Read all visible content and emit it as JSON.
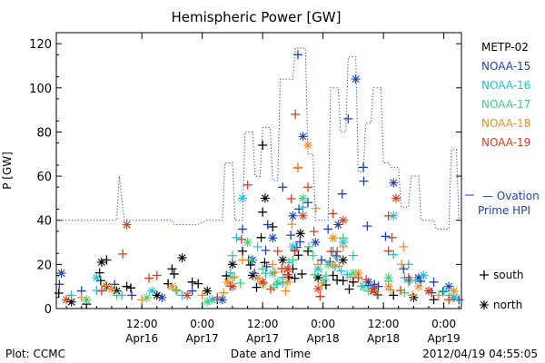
{
  "chart_data": {
    "type": "scatter",
    "title": "Hemispheric Power [GW]",
    "xlabel": "Date and Time",
    "ylabel": "P [GW]",
    "ylim": [
      0,
      125
    ],
    "yticks": [
      "0",
      "20",
      "40",
      "60",
      "80",
      "100",
      "120"
    ],
    "xlim": [
      "2012-04-15T19:00",
      "2012-04-19T03:30"
    ],
    "xticks": [
      {
        "t": "2012-04-16T12:00",
        "time": "12:00",
        "day": "Apr16"
      },
      {
        "t": "2012-04-17T00:00",
        "time": "0:00",
        "day": "Apr17"
      },
      {
        "t": "2012-04-17T12:00",
        "time": "12:00",
        "day": "Apr17"
      },
      {
        "t": "2012-04-18T00:00",
        "time": "0:00",
        "day": "Apr18"
      },
      {
        "t": "2012-04-18T12:00",
        "time": "12:00",
        "day": "Apr18"
      },
      {
        "t": "2012-04-19T00:00",
        "time": "0:00",
        "day": "Apr19"
      }
    ],
    "grid": false,
    "legend_position": "right",
    "footer_left": "Plot: CCMC",
    "footer_right": "2012/04/19 04:55:05",
    "series": [
      {
        "name": "METP-02",
        "color": "#000000",
        "marker": "mixed",
        "points": [
          [
            "2012-04-15T19:30",
            7
          ],
          [
            "2012-04-15T22:00",
            3
          ],
          [
            "2012-04-16T01:00",
            2
          ],
          [
            "2012-04-16T04:00",
            21
          ],
          [
            "2012-04-16T05:00",
            22
          ],
          [
            "2012-04-16T07:00",
            8
          ],
          [
            "2012-04-16T09:00",
            10
          ],
          [
            "2012-04-16T15:00",
            6
          ],
          [
            "2012-04-16T18:00",
            18
          ],
          [
            "2012-04-16T20:00",
            23
          ],
          [
            "2012-04-16T22:00",
            12
          ],
          [
            "2012-04-17T01:00",
            8
          ],
          [
            "2012-04-17T03:00",
            4
          ],
          [
            "2012-04-17T06:00",
            20
          ],
          [
            "2012-04-17T08:00",
            26
          ],
          [
            "2012-04-17T10:00",
            15
          ],
          [
            "2012-04-17T12:00",
            74
          ],
          [
            "2012-04-17T12:30",
            50
          ],
          [
            "2012-04-17T14:00",
            37
          ],
          [
            "2012-04-17T16:00",
            22
          ],
          [
            "2012-04-17T18:00",
            18
          ],
          [
            "2012-04-17T19:30",
            34
          ],
          [
            "2012-04-17T21:00",
            26
          ],
          [
            "2012-04-17T23:00",
            14
          ],
          [
            "2012-04-18T02:00",
            15
          ],
          [
            "2012-04-18T04:00",
            22
          ],
          [
            "2012-04-18T06:00",
            12
          ],
          [
            "2012-04-18T10:00",
            8
          ],
          [
            "2012-04-18T14:00",
            6
          ],
          [
            "2012-04-18T18:00",
            5
          ],
          [
            "2012-04-18T22:00",
            4
          ],
          [
            "2012-04-19T02:00",
            5
          ]
        ]
      },
      {
        "name": "NOAA-15",
        "color": "#1c3fc8",
        "marker": "mixed",
        "points": [
          [
            "2012-04-15T20:00",
            16
          ],
          [
            "2012-04-16T00:00",
            8
          ],
          [
            "2012-04-16T05:00",
            10
          ],
          [
            "2012-04-16T10:00",
            6
          ],
          [
            "2012-04-16T16:00",
            5
          ],
          [
            "2012-04-16T22:00",
            8
          ],
          [
            "2012-04-17T04:00",
            4
          ],
          [
            "2012-04-17T08:00",
            36
          ],
          [
            "2012-04-17T10:00",
            22
          ],
          [
            "2012-04-17T13:00",
            38
          ],
          [
            "2012-04-17T14:00",
            32
          ],
          [
            "2012-04-17T16:00",
            55
          ],
          [
            "2012-04-17T18:00",
            42
          ],
          [
            "2012-04-17T19:00",
            115
          ],
          [
            "2012-04-17T20:00",
            78
          ],
          [
            "2012-04-17T21:00",
            48
          ],
          [
            "2012-04-17T22:30",
            30
          ],
          [
            "2012-04-18T01:00",
            36
          ],
          [
            "2012-04-18T03:00",
            38
          ],
          [
            "2012-04-18T05:00",
            86
          ],
          [
            "2012-04-18T06:30",
            104
          ],
          [
            "2012-04-18T08:00",
            64
          ],
          [
            "2012-04-18T09:00",
            12
          ],
          [
            "2012-04-18T11:00",
            10
          ],
          [
            "2012-04-18T14:00",
            57
          ],
          [
            "2012-04-18T16:00",
            18
          ],
          [
            "2012-04-18T19:00",
            14
          ],
          [
            "2012-04-18T22:00",
            12
          ],
          [
            "2012-04-19T01:00",
            10
          ],
          [
            "2012-04-19T03:00",
            4
          ]
        ]
      },
      {
        "name": "NOAA-16",
        "color": "#17c8d6",
        "marker": "mixed",
        "points": [
          [
            "2012-04-15T22:00",
            6
          ],
          [
            "2012-04-16T03:00",
            14
          ],
          [
            "2012-04-16T08:00",
            6
          ],
          [
            "2012-04-16T14:00",
            8
          ],
          [
            "2012-04-16T20:00",
            6
          ],
          [
            "2012-04-17T02:00",
            4
          ],
          [
            "2012-04-17T06:00",
            24
          ],
          [
            "2012-04-17T08:00",
            50
          ],
          [
            "2012-04-17T11:00",
            28
          ],
          [
            "2012-04-17T14:00",
            16
          ],
          [
            "2012-04-17T16:00",
            14
          ],
          [
            "2012-04-17T18:00",
            28
          ],
          [
            "2012-04-17T20:00",
            46
          ],
          [
            "2012-04-17T23:00",
            18
          ],
          [
            "2012-04-18T02:00",
            26
          ],
          [
            "2012-04-18T04:00",
            30
          ],
          [
            "2012-04-18T06:00",
            24
          ],
          [
            "2012-04-18T08:00",
            10
          ],
          [
            "2012-04-18T11:00",
            6
          ],
          [
            "2012-04-18T14:00",
            42
          ],
          [
            "2012-04-18T17:00",
            20
          ],
          [
            "2012-04-18T20:00",
            15
          ],
          [
            "2012-04-19T00:00",
            8
          ],
          [
            "2012-04-19T02:00",
            5
          ]
        ]
      },
      {
        "name": "NOAA-17",
        "color": "#3ad47a",
        "marker": "mixed",
        "points": [
          [
            "2012-04-16T01:00",
            4
          ],
          [
            "2012-04-16T07:00",
            6
          ],
          [
            "2012-04-16T13:00",
            5
          ],
          [
            "2012-04-16T19:00",
            8
          ],
          [
            "2012-04-17T01:00",
            3
          ],
          [
            "2012-04-17T06:00",
            14
          ],
          [
            "2012-04-17T09:00",
            30
          ],
          [
            "2012-04-17T12:00",
            18
          ],
          [
            "2012-04-17T15:00",
            12
          ],
          [
            "2012-04-17T18:00",
            22
          ],
          [
            "2012-04-17T20:00",
            50
          ],
          [
            "2012-04-17T22:00",
            24
          ],
          [
            "2012-04-18T01:00",
            20
          ],
          [
            "2012-04-18T04:00",
            32
          ],
          [
            "2012-04-18T06:00",
            16
          ],
          [
            "2012-04-18T09:00",
            8
          ],
          [
            "2012-04-18T13:00",
            14
          ],
          [
            "2012-04-18T17:00",
            12
          ],
          [
            "2012-04-18T21:00",
            8
          ],
          [
            "2012-04-19T01:00",
            6
          ]
        ]
      },
      {
        "name": "NOAA-18",
        "color": "#f28c1e",
        "marker": "mixed",
        "points": [
          [
            "2012-04-16T00:00",
            5
          ],
          [
            "2012-04-16T06:00",
            9
          ],
          [
            "2012-04-16T12:00",
            4
          ],
          [
            "2012-04-16T18:00",
            10
          ],
          [
            "2012-04-17T00:00",
            6
          ],
          [
            "2012-04-17T05:00",
            12
          ],
          [
            "2012-04-17T08:00",
            22
          ],
          [
            "2012-04-17T11:00",
            14
          ],
          [
            "2012-04-17T14:00",
            20
          ],
          [
            "2012-04-17T17:00",
            12
          ],
          [
            "2012-04-17T19:00",
            64
          ],
          [
            "2012-04-17T21:00",
            74
          ],
          [
            "2012-04-17T23:00",
            20
          ],
          [
            "2012-04-18T02:00",
            32
          ],
          [
            "2012-04-18T04:00",
            28
          ],
          [
            "2012-04-18T07:00",
            16
          ],
          [
            "2012-04-18T10:00",
            8
          ],
          [
            "2012-04-18T13:00",
            10
          ],
          [
            "2012-04-18T16:00",
            28
          ],
          [
            "2012-04-18T19:00",
            10
          ],
          [
            "2012-04-18T23:00",
            6
          ],
          [
            "2012-04-19T02:00",
            8
          ]
        ]
      },
      {
        "name": "NOAA-19",
        "color": "#e03a1e",
        "marker": "mixed",
        "points": [
          [
            "2012-04-15T21:00",
            4
          ],
          [
            "2012-04-16T04:00",
            8
          ],
          [
            "2012-04-16T09:00",
            38
          ],
          [
            "2012-04-16T15:00",
            15
          ],
          [
            "2012-04-16T21:00",
            6
          ],
          [
            "2012-04-17T03:00",
            5
          ],
          [
            "2012-04-17T06:00",
            10
          ],
          [
            "2012-04-17T09:00",
            56
          ],
          [
            "2012-04-17T12:00",
            12
          ],
          [
            "2012-04-17T15:00",
            26
          ],
          [
            "2012-04-17T17:00",
            18
          ],
          [
            "2012-04-17T18:30",
            88
          ],
          [
            "2012-04-17T20:00",
            42
          ],
          [
            "2012-04-17T21:00",
            55
          ],
          [
            "2012-04-17T23:00",
            9
          ],
          [
            "2012-04-18T02:00",
            43
          ],
          [
            "2012-04-18T04:00",
            40
          ],
          [
            "2012-04-18T07:00",
            14
          ],
          [
            "2012-04-18T10:00",
            9
          ],
          [
            "2012-04-18T13:00",
            42
          ],
          [
            "2012-04-18T14:30",
            50
          ],
          [
            "2012-04-18T17:00",
            14
          ],
          [
            "2012-04-18T21:00",
            8
          ],
          [
            "2012-04-19T01:00",
            4
          ]
        ]
      }
    ],
    "ovation": {
      "name": "Ovation Prime HPI",
      "legend_line1": "Ovation",
      "legend_line2": "Prime HPI",
      "color": "#1c3fc8",
      "style": "dotted-step",
      "points": [
        [
          "2012-04-15T19:00",
          40
        ],
        [
          "2012-04-16T07:00",
          40
        ],
        [
          "2012-04-16T07:30",
          60
        ],
        [
          "2012-04-16T08:30",
          40
        ],
        [
          "2012-04-16T18:00",
          40
        ],
        [
          "2012-04-16T18:30",
          38
        ],
        [
          "2012-04-16T23:00",
          38
        ],
        [
          "2012-04-17T01:00",
          40
        ],
        [
          "2012-04-17T04:00",
          40
        ],
        [
          "2012-04-17T04:30",
          66
        ],
        [
          "2012-04-17T06:00",
          66
        ],
        [
          "2012-04-17T06:30",
          40
        ],
        [
          "2012-04-17T08:00",
          40
        ],
        [
          "2012-04-17T08:30",
          80
        ],
        [
          "2012-04-17T10:00",
          80
        ],
        [
          "2012-04-17T10:30",
          60
        ],
        [
          "2012-04-17T11:30",
          60
        ],
        [
          "2012-04-17T12:00",
          82
        ],
        [
          "2012-04-17T13:30",
          82
        ],
        [
          "2012-04-17T14:00",
          58
        ],
        [
          "2012-04-17T15:00",
          58
        ],
        [
          "2012-04-17T15:30",
          104
        ],
        [
          "2012-04-17T18:00",
          104
        ],
        [
          "2012-04-17T18:30",
          118
        ],
        [
          "2012-04-17T20:30",
          118
        ],
        [
          "2012-04-17T21:00",
          70
        ],
        [
          "2012-04-17T22:00",
          70
        ],
        [
          "2012-04-17T22:30",
          40
        ],
        [
          "2012-04-18T01:00",
          40
        ],
        [
          "2012-04-18T01:30",
          100
        ],
        [
          "2012-04-18T03:00",
          100
        ],
        [
          "2012-04-18T03:30",
          80
        ],
        [
          "2012-04-18T04:30",
          80
        ],
        [
          "2012-04-18T05:00",
          114
        ],
        [
          "2012-04-18T06:30",
          114
        ],
        [
          "2012-04-18T07:00",
          62
        ],
        [
          "2012-04-18T08:00",
          62
        ],
        [
          "2012-04-18T08:30",
          84
        ],
        [
          "2012-04-18T09:30",
          84
        ],
        [
          "2012-04-18T10:00",
          100
        ],
        [
          "2012-04-18T11:30",
          100
        ],
        [
          "2012-04-18T12:00",
          66
        ],
        [
          "2012-04-18T13:00",
          66
        ],
        [
          "2012-04-18T13:30",
          64
        ],
        [
          "2012-04-18T15:00",
          64
        ],
        [
          "2012-04-18T15:30",
          46
        ],
        [
          "2012-04-18T17:00",
          46
        ],
        [
          "2012-04-18T17:30",
          60
        ],
        [
          "2012-04-18T19:00",
          60
        ],
        [
          "2012-04-18T19:30",
          40
        ],
        [
          "2012-04-18T22:00",
          40
        ],
        [
          "2012-04-18T22:30",
          36
        ],
        [
          "2012-04-19T01:00",
          36
        ],
        [
          "2012-04-19T01:30",
          72
        ],
        [
          "2012-04-19T02:30",
          72
        ],
        [
          "2012-04-19T03:00",
          40
        ],
        [
          "2012-04-19T03:30",
          40
        ]
      ]
    },
    "marker_legend": [
      {
        "symbol": "+",
        "label": "south"
      },
      {
        "symbol": "*",
        "label": "north"
      }
    ]
  }
}
